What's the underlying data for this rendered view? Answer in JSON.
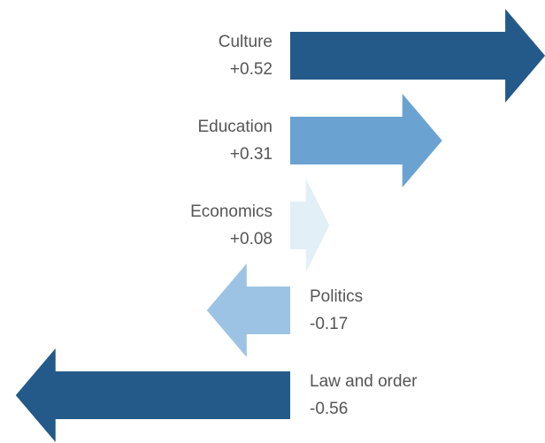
{
  "chart_data": {
    "type": "arrow",
    "categories": [
      "Culture",
      "Education",
      "Economics",
      "Politics",
      "Law and order"
    ],
    "values": [
      0.52,
      0.31,
      0.08,
      -0.17,
      -0.56
    ],
    "value_labels": [
      "+0.52",
      "+0.31",
      "+0.08",
      "-0.17",
      "-0.56"
    ],
    "colors": [
      "#235a8a",
      "#6aa3d2",
      "#e3eff6",
      "#9dc3e4",
      "#235a8a"
    ]
  }
}
